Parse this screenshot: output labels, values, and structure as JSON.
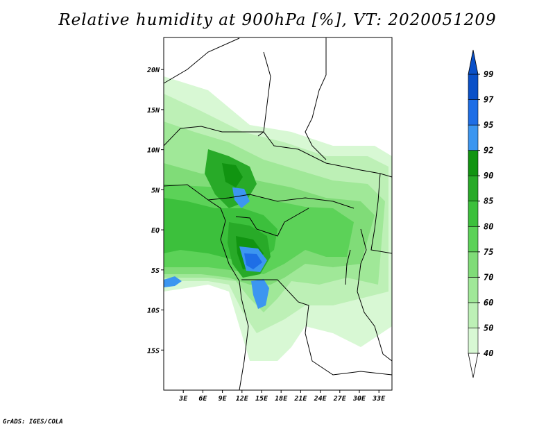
{
  "title": "Relative humidity at 900hPa [%], VT: 2020051209",
  "credit": "GrADS: IGES/COLA",
  "map": {
    "lon_range": [
      0,
      35
    ],
    "lat_range": [
      -20,
      24
    ],
    "lat_ticks": [
      {
        "value": 20,
        "label": "20N"
      },
      {
        "value": 15,
        "label": "15N"
      },
      {
        "value": 10,
        "label": "10N"
      },
      {
        "value": 5,
        "label": "5N"
      },
      {
        "value": 0,
        "label": "EQ"
      },
      {
        "value": -5,
        "label": "5S"
      },
      {
        "value": -10,
        "label": "10S"
      },
      {
        "value": -15,
        "label": "15S"
      }
    ],
    "lon_ticks": [
      {
        "value": 3,
        "label": "3E"
      },
      {
        "value": 6,
        "label": "6E"
      },
      {
        "value": 9,
        "label": "9E"
      },
      {
        "value": 12,
        "label": "12E"
      },
      {
        "value": 15,
        "label": "15E"
      },
      {
        "value": 18,
        "label": "18E"
      },
      {
        "value": 21,
        "label": "21E"
      },
      {
        "value": 24,
        "label": "24E"
      },
      {
        "value": 27,
        "label": "27E"
      },
      {
        "value": 30,
        "label": "30E"
      },
      {
        "value": 33,
        "label": "33E"
      }
    ]
  },
  "colorbar": {
    "levels": [
      {
        "label": "40",
        "color": "#f0fff0"
      },
      {
        "label": "50",
        "color": "#d8f8d4"
      },
      {
        "label": "60",
        "color": "#bdf0b6"
      },
      {
        "label": "70",
        "color": "#a0e898"
      },
      {
        "label": "75",
        "color": "#80dc78"
      },
      {
        "label": "80",
        "color": "#5cd258"
      },
      {
        "label": "85",
        "color": "#3cc03c"
      },
      {
        "label": "90",
        "color": "#28aa28"
      },
      {
        "label": "92",
        "color": "#119411"
      },
      {
        "label": "95",
        "color": "#3c96f0"
      },
      {
        "label": "97",
        "color": "#1e6ee6"
      },
      {
        "label": "99",
        "color": "#0a50c8"
      }
    ],
    "below_color": "#ffffff",
    "above_color": "#0a50c8"
  }
}
